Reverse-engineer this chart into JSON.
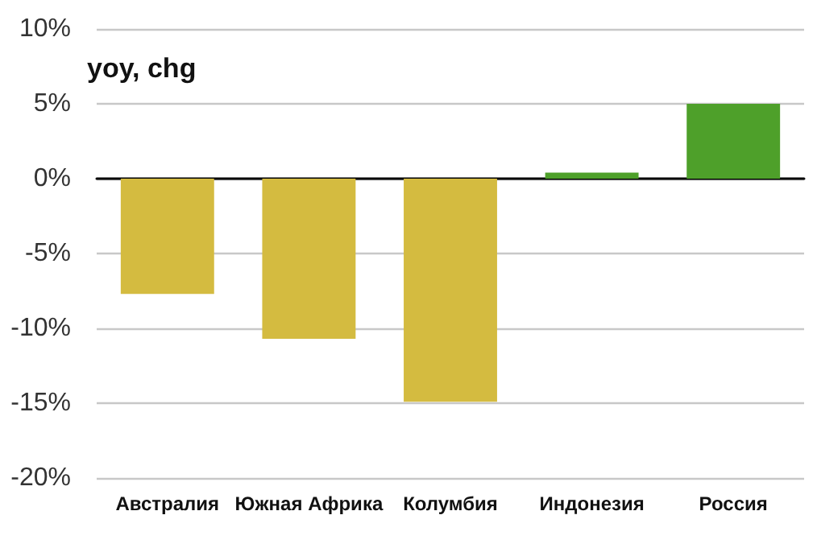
{
  "chart_data": {
    "type": "bar",
    "ylabel": "yoy, chg",
    "categories": [
      "Австралия",
      "Южная Африка",
      "Колумбия",
      "Индонезия",
      "Россия"
    ],
    "values": [
      -7.7,
      -10.7,
      -14.9,
      0.4,
      5.0
    ],
    "colors": [
      "#d4bb40",
      "#d4bb40",
      "#d4bb40",
      "#4ea02a",
      "#4ea02a"
    ],
    "ylim": [
      -20,
      10
    ],
    "yticks": [
      {
        "value": -20,
        "label": "-20%"
      },
      {
        "value": -15,
        "label": "-15%"
      },
      {
        "value": -10,
        "label": "-10%"
      },
      {
        "value": -5,
        "label": "-5%"
      },
      {
        "value": 0,
        "label": "0%"
      },
      {
        "value": 5,
        "label": "5%"
      },
      {
        "value": 10,
        "label": "10%"
      }
    ],
    "grid": "y"
  }
}
